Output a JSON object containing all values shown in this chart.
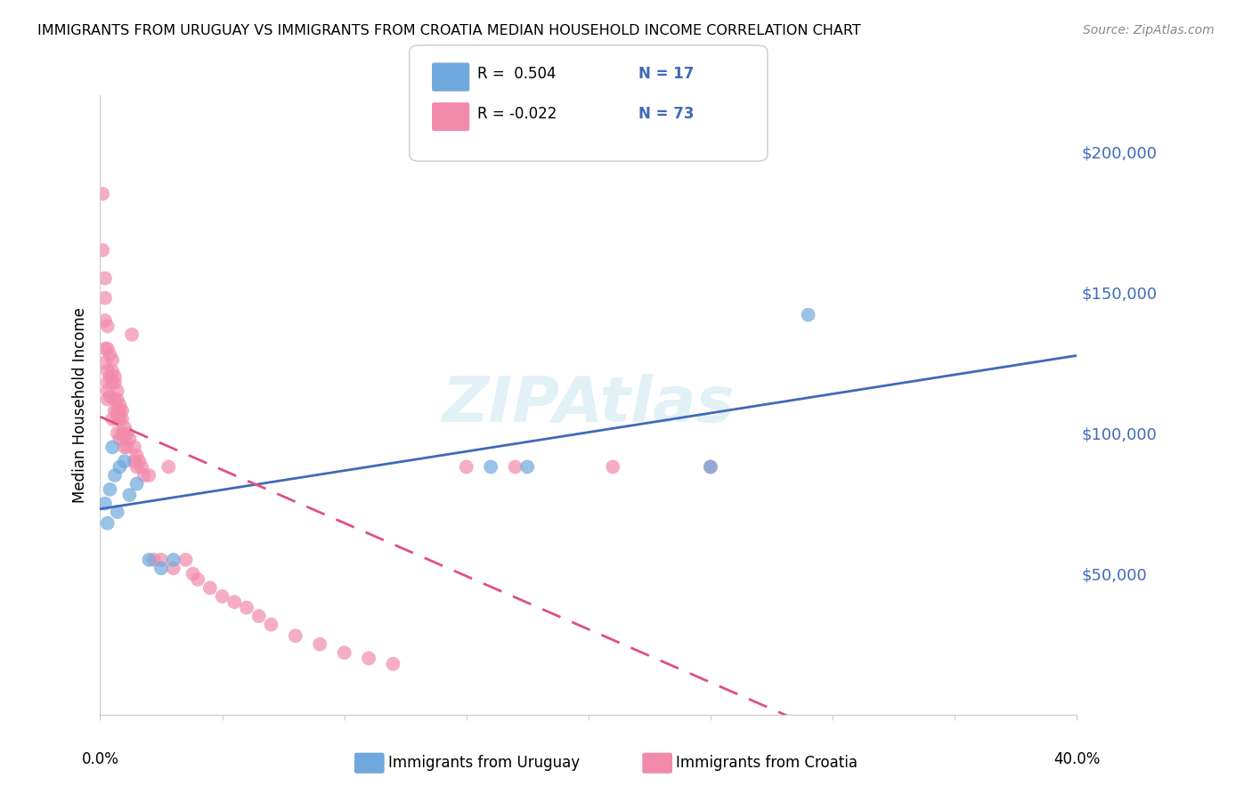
{
  "title": "IMMIGRANTS FROM URUGUAY VS IMMIGRANTS FROM CROATIA MEDIAN HOUSEHOLD INCOME CORRELATION CHART",
  "source": "Source: ZipAtlas.com",
  "ylabel": "Median Household Income",
  "yticks": [
    0,
    50000,
    100000,
    150000,
    200000
  ],
  "ytick_labels": [
    "",
    "$50,000",
    "$100,000",
    "$150,000",
    "$200,000"
  ],
  "xlim": [
    0.0,
    0.4
  ],
  "ylim": [
    0,
    220000
  ],
  "watermark": "ZIPAtlas",
  "legend_r_uruguay": "R =  0.504",
  "legend_n_uruguay": "N = 17",
  "legend_r_croatia": "R = -0.022",
  "legend_n_croatia": "N = 73",
  "color_uruguay": "#6ea8dc",
  "color_croatia": "#f28bab",
  "color_line_uruguay": "#4169b8",
  "color_line_croatia": "#e05080",
  "uruguay_x": [
    0.002,
    0.003,
    0.004,
    0.005,
    0.006,
    0.007,
    0.008,
    0.01,
    0.012,
    0.015,
    0.02,
    0.025,
    0.03,
    0.16,
    0.175,
    0.25,
    0.29
  ],
  "uruguay_y": [
    75000,
    68000,
    80000,
    95000,
    85000,
    72000,
    88000,
    90000,
    78000,
    82000,
    55000,
    52000,
    55000,
    88000,
    88000,
    88000,
    142000
  ],
  "croatia_x": [
    0.001,
    0.001,
    0.002,
    0.002,
    0.002,
    0.002,
    0.002,
    0.003,
    0.003,
    0.003,
    0.003,
    0.003,
    0.003,
    0.004,
    0.004,
    0.004,
    0.005,
    0.005,
    0.005,
    0.005,
    0.006,
    0.006,
    0.006,
    0.006,
    0.007,
    0.007,
    0.007,
    0.007,
    0.007,
    0.008,
    0.008,
    0.008,
    0.008,
    0.009,
    0.009,
    0.009,
    0.01,
    0.01,
    0.01,
    0.011,
    0.011,
    0.012,
    0.013,
    0.014,
    0.014,
    0.015,
    0.015,
    0.016,
    0.017,
    0.018,
    0.02,
    0.022,
    0.025,
    0.028,
    0.03,
    0.035,
    0.038,
    0.04,
    0.045,
    0.05,
    0.055,
    0.06,
    0.065,
    0.07,
    0.08,
    0.09,
    0.1,
    0.11,
    0.12,
    0.15,
    0.17,
    0.21,
    0.25
  ],
  "croatia_y": [
    185000,
    165000,
    148000,
    140000,
    155000,
    130000,
    125000,
    138000,
    130000,
    122000,
    118000,
    115000,
    112000,
    128000,
    120000,
    113000,
    126000,
    122000,
    118000,
    105000,
    120000,
    118000,
    112000,
    108000,
    115000,
    112000,
    108000,
    105000,
    100000,
    110000,
    108000,
    105000,
    98000,
    108000,
    105000,
    100000,
    102000,
    98000,
    95000,
    100000,
    95000,
    98000,
    135000,
    95000,
    90000,
    92000,
    88000,
    90000,
    88000,
    85000,
    85000,
    55000,
    55000,
    88000,
    52000,
    55000,
    50000,
    48000,
    45000,
    42000,
    40000,
    38000,
    35000,
    32000,
    28000,
    25000,
    22000,
    20000,
    18000,
    88000,
    88000,
    88000,
    88000
  ]
}
